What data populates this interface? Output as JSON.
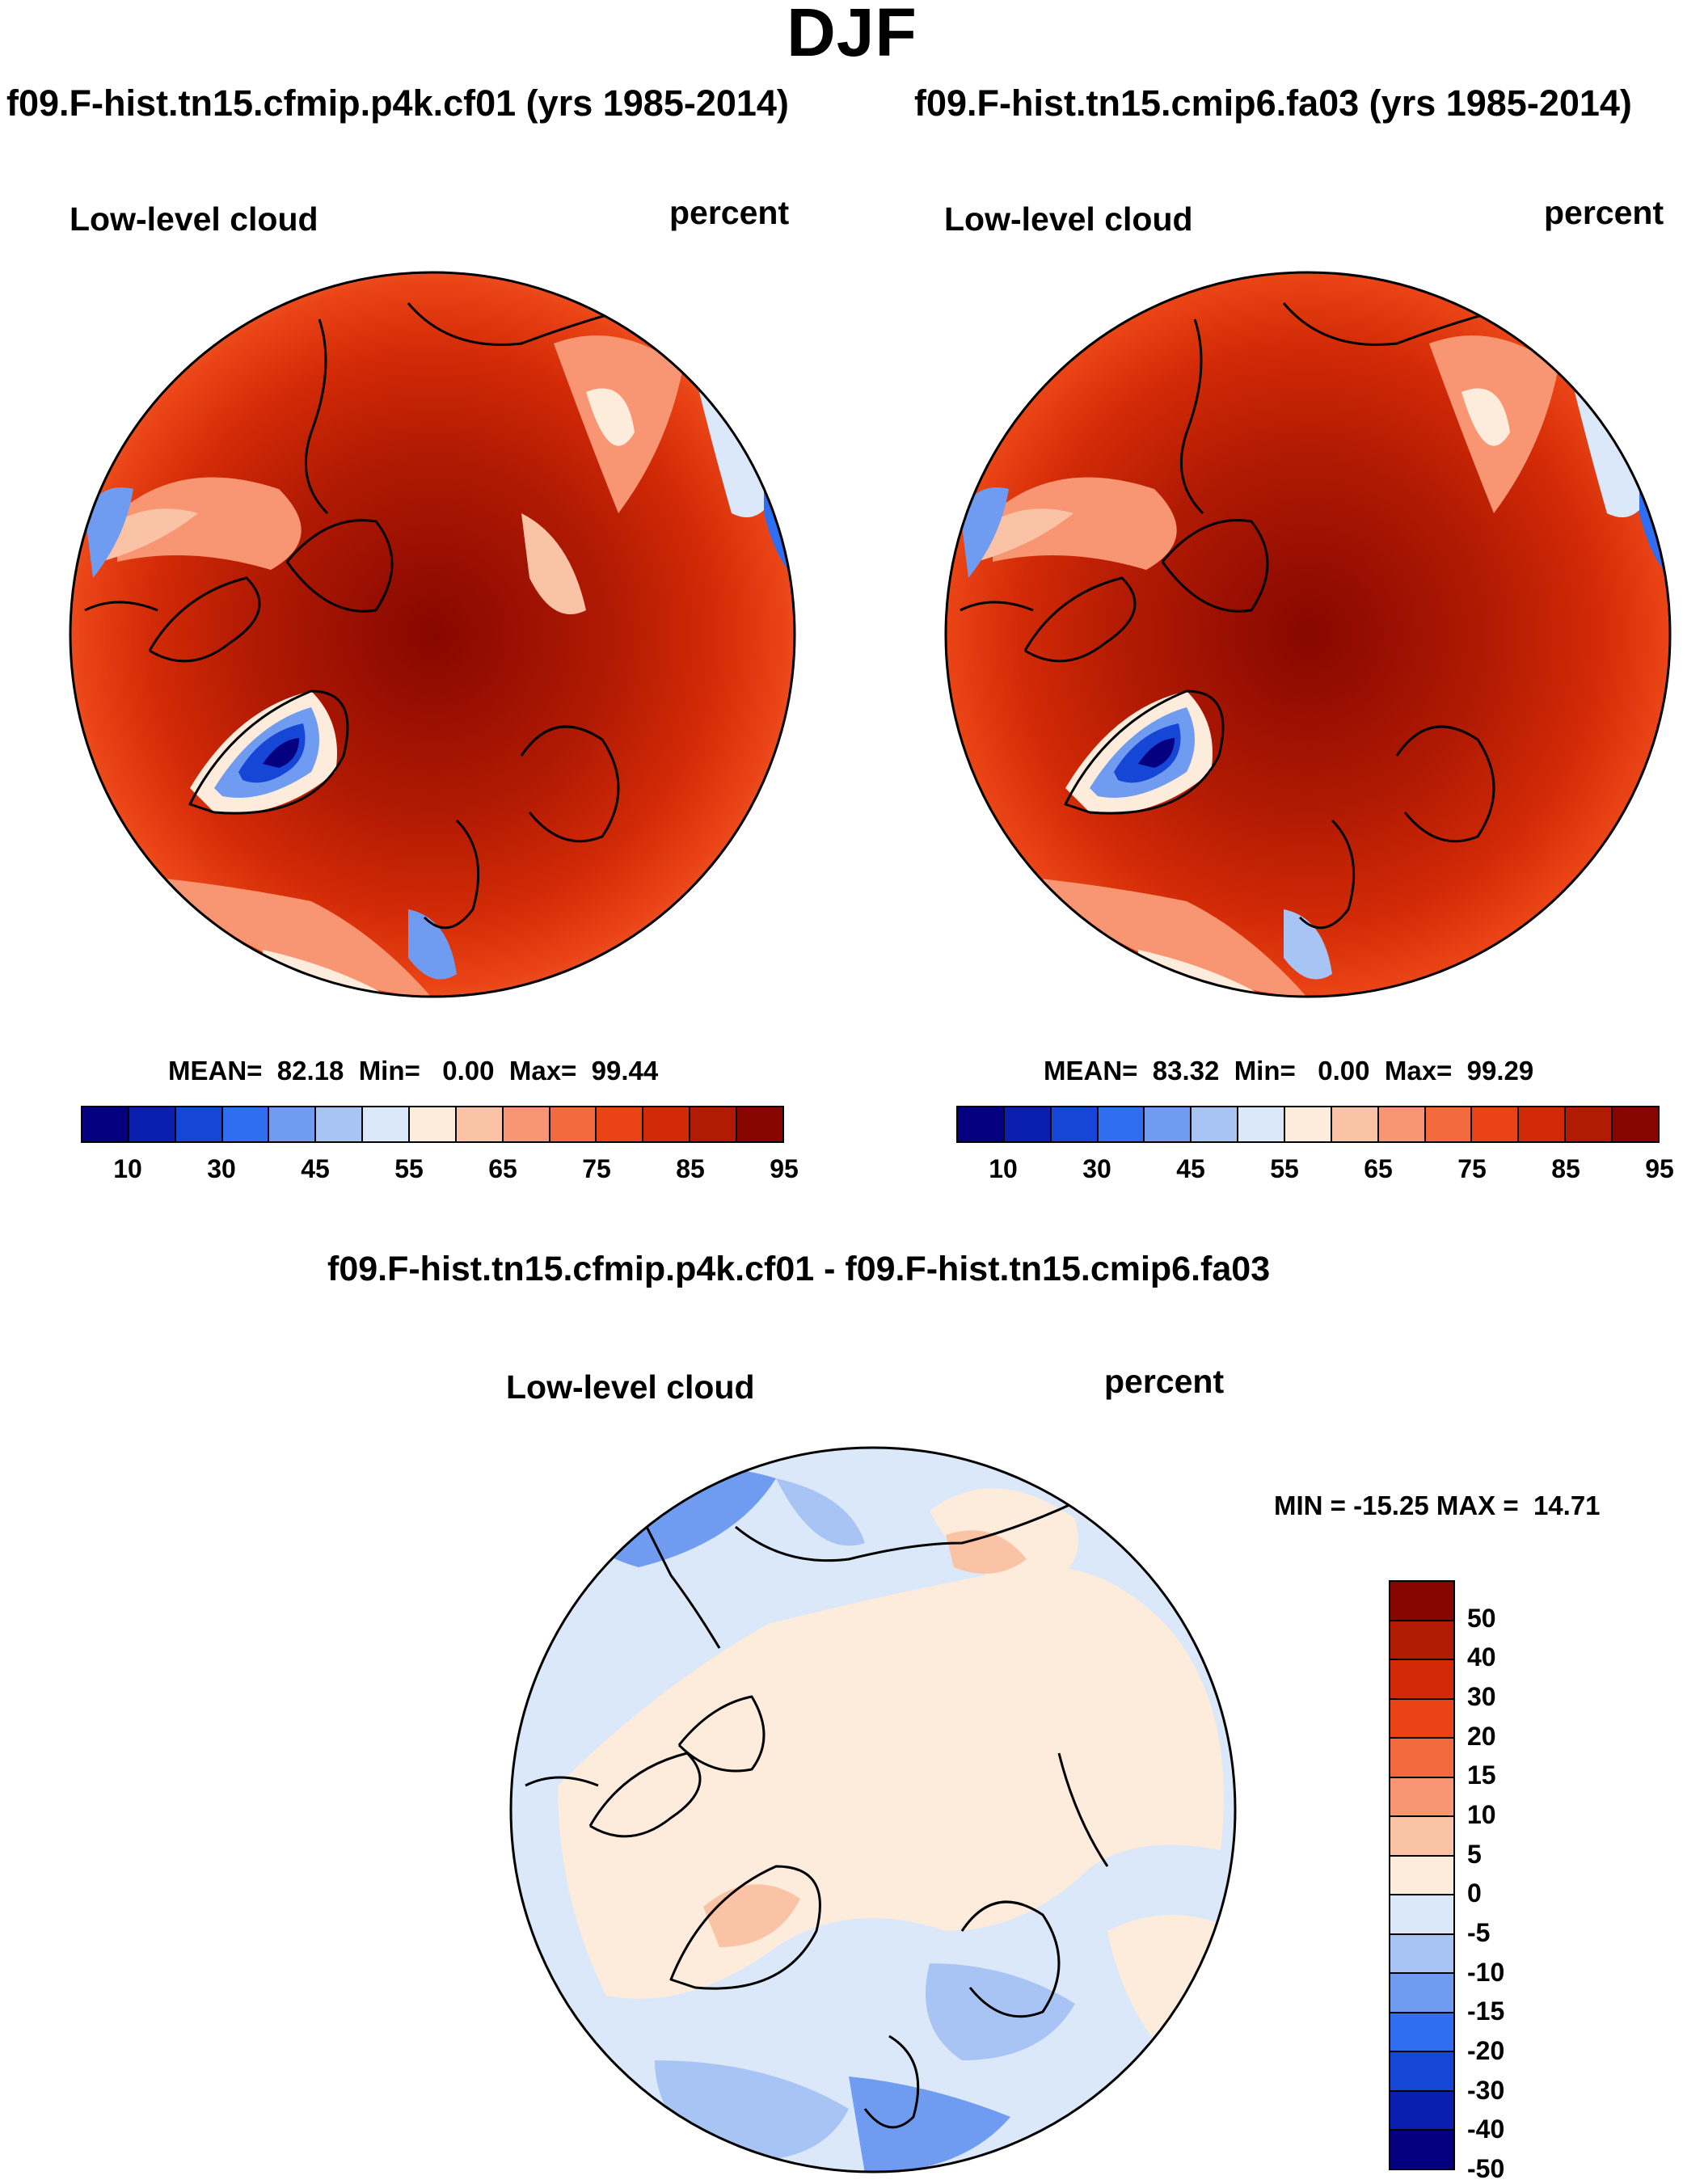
{
  "title": "DJF",
  "variable": "Low-level cloud",
  "units": "percent",
  "panels": [
    {
      "case": "f09.F-hist.tn15.cfmip.p4k.cf01 (yrs 1985-2014)",
      "stats": "MEAN=  82.18  Min=   0.00  Max=  99.44"
    },
    {
      "case": "f09.F-hist.tn15.cmip6.fa03 (yrs 1985-2014)",
      "stats": "MEAN=  83.32  Min=   0.00  Max=  99.29"
    }
  ],
  "diff": {
    "title": "f09.F-hist.tn15.cfmip.p4k.cf01 - f09.F-hist.tn15.cmip6.fa03",
    "stats": "MIN = -15.25 MAX =  14.71"
  },
  "colorbar": {
    "colors": [
      "#05007f",
      "#0a1fb0",
      "#1646d6",
      "#2f6ef0",
      "#6f9cf0",
      "#a8c4f4",
      "#dbe8fa",
      "#fdebdc",
      "#fbc3a6",
      "#f89674",
      "#f36a3f",
      "#ea4416",
      "#d22a06",
      "#b11a03",
      "#870700"
    ],
    "ticks": [
      "10",
      "30",
      "45",
      "55",
      "65",
      "75",
      "85",
      "95"
    ]
  },
  "diff_colorbar": {
    "colors": [
      "#870700",
      "#b11a03",
      "#d22a06",
      "#ea4416",
      "#f36a3f",
      "#f89674",
      "#fbc3a6",
      "#fdebdc",
      "#dbe8fa",
      "#a8c4f4",
      "#6f9cf0",
      "#2f6ef0",
      "#1646d6",
      "#0a1fb0",
      "#05007f"
    ],
    "ticks": [
      "50",
      "40",
      "30",
      "20",
      "15",
      "10",
      "5",
      "0",
      "-5",
      "-10",
      "-15",
      "-20",
      "-30",
      "-40",
      "-50"
    ]
  }
}
